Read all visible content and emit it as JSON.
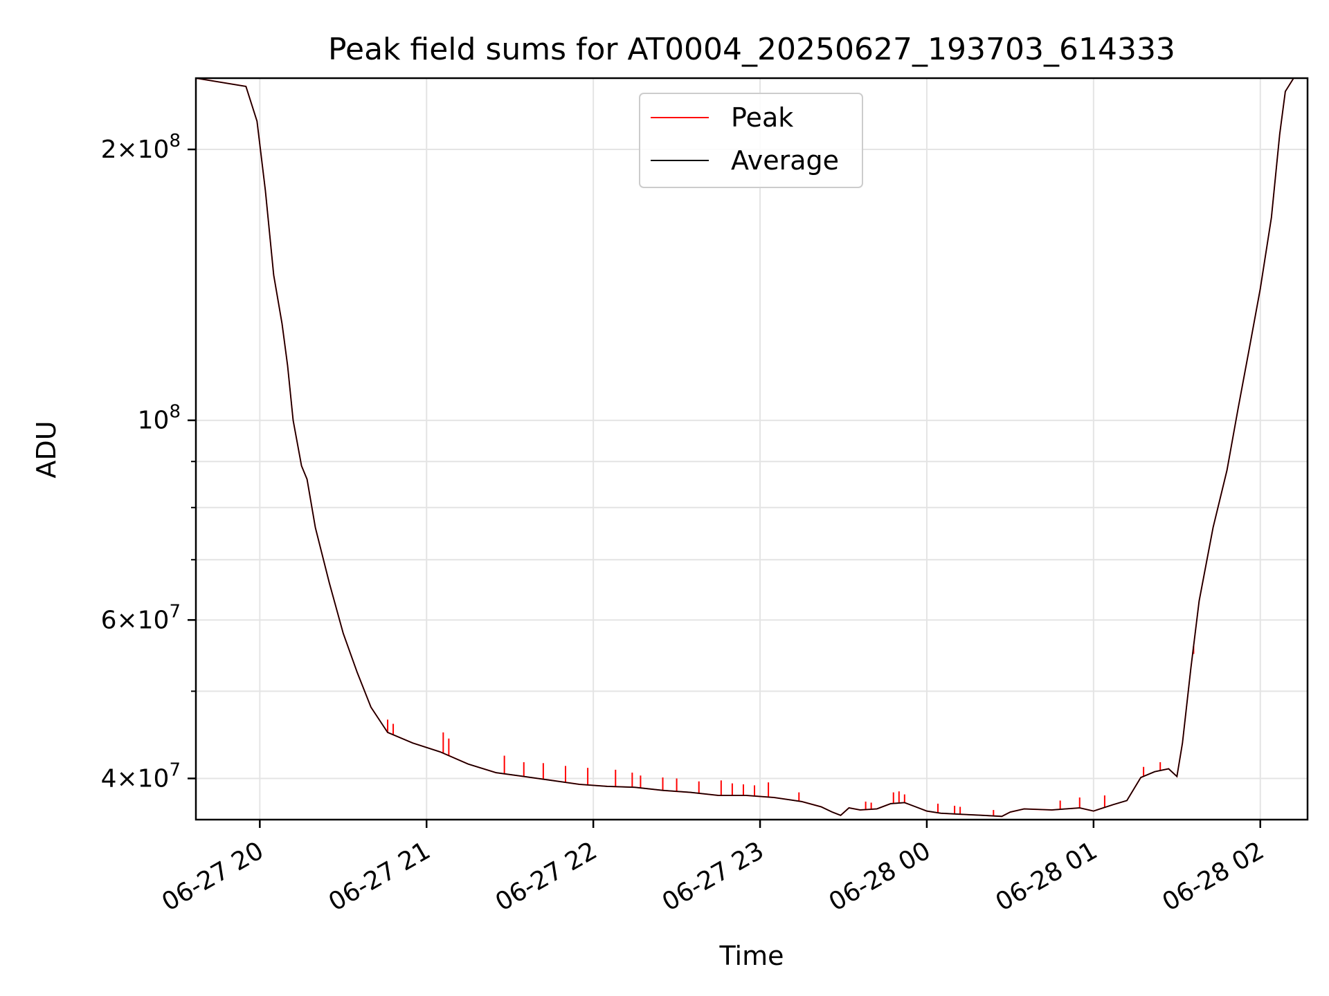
{
  "chart_data": {
    "type": "line",
    "title": "Peak field sums for AT0004_20250627_193703_614333",
    "xlabel": "Time",
    "ylabel": "ADU",
    "yscale": "log",
    "xlim": [
      "06-27 19:37",
      "06-28 02:17"
    ],
    "ylim": [
      36000000,
      240000000
    ],
    "grid": true,
    "legend_position": "top-center",
    "x_ticks": [
      {
        "value": "06-27 20:00",
        "label": "06-27 20"
      },
      {
        "value": "06-27 21:00",
        "label": "06-27 21"
      },
      {
        "value": "06-27 22:00",
        "label": "06-27 22"
      },
      {
        "value": "06-27 23:00",
        "label": "06-27 23"
      },
      {
        "value": "06-28 00:00",
        "label": "06-28 00"
      },
      {
        "value": "06-28 01:00",
        "label": "06-28 01"
      },
      {
        "value": "06-28 02:00",
        "label": "06-28 02"
      }
    ],
    "y_ticks": [
      {
        "value": 40000000,
        "mantissa": "4",
        "exponent": "7"
      },
      {
        "value": 60000000,
        "mantissa": "6",
        "exponent": "7"
      },
      {
        "value": 100000000,
        "mantissa": "",
        "exponent": "8"
      },
      {
        "value": 200000000,
        "mantissa": "2",
        "exponent": "8"
      }
    ],
    "y_minor_ticks": [
      50000000,
      70000000,
      80000000,
      90000000
    ],
    "series": [
      {
        "name": "Average",
        "color": "#000000",
        "points": [
          [
            "06-27 19:37",
            240000000
          ],
          [
            "06-27 19:55",
            235000000
          ],
          [
            "06-27 19:59",
            215000000
          ],
          [
            "06-27 20:02",
            180000000
          ],
          [
            "06-27 20:05",
            145000000
          ],
          [
            "06-27 20:08",
            128000000
          ],
          [
            "06-27 20:10",
            115000000
          ],
          [
            "06-27 20:12",
            100000000
          ],
          [
            "06-27 20:15",
            89000000
          ],
          [
            "06-27 20:17",
            86000000
          ],
          [
            "06-27 20:20",
            76000000
          ],
          [
            "06-27 20:25",
            66000000
          ],
          [
            "06-27 20:30",
            58000000
          ],
          [
            "06-27 20:35",
            52500000
          ],
          [
            "06-27 20:40",
            48000000
          ],
          [
            "06-27 20:46",
            45000000
          ],
          [
            "06-27 20:55",
            43800000
          ],
          [
            "06-27 21:05",
            42800000
          ],
          [
            "06-27 21:15",
            41500000
          ],
          [
            "06-27 21:25",
            40600000
          ],
          [
            "06-27 21:35",
            40200000
          ],
          [
            "06-27 21:45",
            39800000
          ],
          [
            "06-27 21:55",
            39400000
          ],
          [
            "06-27 22:05",
            39200000
          ],
          [
            "06-27 22:15",
            39100000
          ],
          [
            "06-27 22:25",
            38800000
          ],
          [
            "06-27 22:35",
            38600000
          ],
          [
            "06-27 22:45",
            38300000
          ],
          [
            "06-27 22:55",
            38300000
          ],
          [
            "06-27 23:05",
            38100000
          ],
          [
            "06-27 23:15",
            37700000
          ],
          [
            "06-27 23:22",
            37200000
          ],
          [
            "06-27 23:26",
            36700000
          ],
          [
            "06-27 23:29",
            36400000
          ],
          [
            "06-27 23:32",
            37100000
          ],
          [
            "06-27 23:36",
            36900000
          ],
          [
            "06-27 23:42",
            37000000
          ],
          [
            "06-27 23:47",
            37500000
          ],
          [
            "06-27 23:52",
            37600000
          ],
          [
            "06-27 23:56",
            37200000
          ],
          [
            "06-28 00:00",
            36800000
          ],
          [
            "06-28 00:05",
            36600000
          ],
          [
            "06-28 00:12",
            36500000
          ],
          [
            "06-28 00:20",
            36400000
          ],
          [
            "06-28 00:27",
            36300000
          ],
          [
            "06-28 00:30",
            36700000
          ],
          [
            "06-28 00:35",
            37000000
          ],
          [
            "06-28 00:45",
            36900000
          ],
          [
            "06-28 00:55",
            37100000
          ],
          [
            "06-28 01:00",
            36800000
          ],
          [
            "06-28 01:07",
            37400000
          ],
          [
            "06-28 01:12",
            37800000
          ],
          [
            "06-28 01:17",
            40100000
          ],
          [
            "06-28 01:22",
            40700000
          ],
          [
            "06-28 01:27",
            41000000
          ],
          [
            "06-28 01:30",
            40200000
          ],
          [
            "06-28 01:32",
            43800000
          ],
          [
            "06-28 01:35",
            53000000
          ],
          [
            "06-28 01:38",
            63000000
          ],
          [
            "06-28 01:43",
            76000000
          ],
          [
            "06-28 01:48",
            88000000
          ],
          [
            "06-28 01:52",
            103000000
          ],
          [
            "06-28 01:56",
            120000000
          ],
          [
            "06-28 02:00",
            140000000
          ],
          [
            "06-28 02:04",
            168000000
          ],
          [
            "06-28 02:07",
            208000000
          ],
          [
            "06-28 02:09",
            232000000
          ],
          [
            "06-28 02:12",
            240000000
          ],
          [
            "06-28 02:17",
            240000000
          ]
        ]
      },
      {
        "name": "Peak",
        "color": "#ff0000",
        "spikes": [
          [
            "06-27 20:46",
            46500000
          ],
          [
            "06-27 20:48",
            46000000
          ],
          [
            "06-27 21:06",
            45000000
          ],
          [
            "06-27 21:08",
            44300000
          ],
          [
            "06-27 21:28",
            42400000
          ],
          [
            "06-27 21:35",
            41700000
          ],
          [
            "06-27 21:42",
            41600000
          ],
          [
            "06-27 21:50",
            41300000
          ],
          [
            "06-27 21:58",
            41100000
          ],
          [
            "06-27 22:08",
            40900000
          ],
          [
            "06-27 22:14",
            40600000
          ],
          [
            "06-27 22:17",
            40300000
          ],
          [
            "06-27 22:25",
            40100000
          ],
          [
            "06-27 22:30",
            40000000
          ],
          [
            "06-27 22:38",
            39700000
          ],
          [
            "06-27 22:46",
            39800000
          ],
          [
            "06-27 22:50",
            39500000
          ],
          [
            "06-27 22:54",
            39400000
          ],
          [
            "06-27 22:58",
            39300000
          ],
          [
            "06-27 23:03",
            39600000
          ],
          [
            "06-27 23:14",
            38600000
          ],
          [
            "06-27 23:38",
            37700000
          ],
          [
            "06-27 23:40",
            37600000
          ],
          [
            "06-27 23:48",
            38600000
          ],
          [
            "06-27 23:50",
            38700000
          ],
          [
            "06-27 23:52",
            38400000
          ],
          [
            "06-28 00:04",
            37500000
          ],
          [
            "06-28 00:10",
            37300000
          ],
          [
            "06-28 00:12",
            37200000
          ],
          [
            "06-28 00:24",
            36900000
          ],
          [
            "06-28 00:48",
            37800000
          ],
          [
            "06-28 00:55",
            38100000
          ],
          [
            "06-28 01:04",
            38300000
          ],
          [
            "06-28 01:18",
            41200000
          ],
          [
            "06-28 01:24",
            41700000
          ],
          [
            "06-28 01:36",
            55000000
          ]
        ]
      }
    ]
  }
}
